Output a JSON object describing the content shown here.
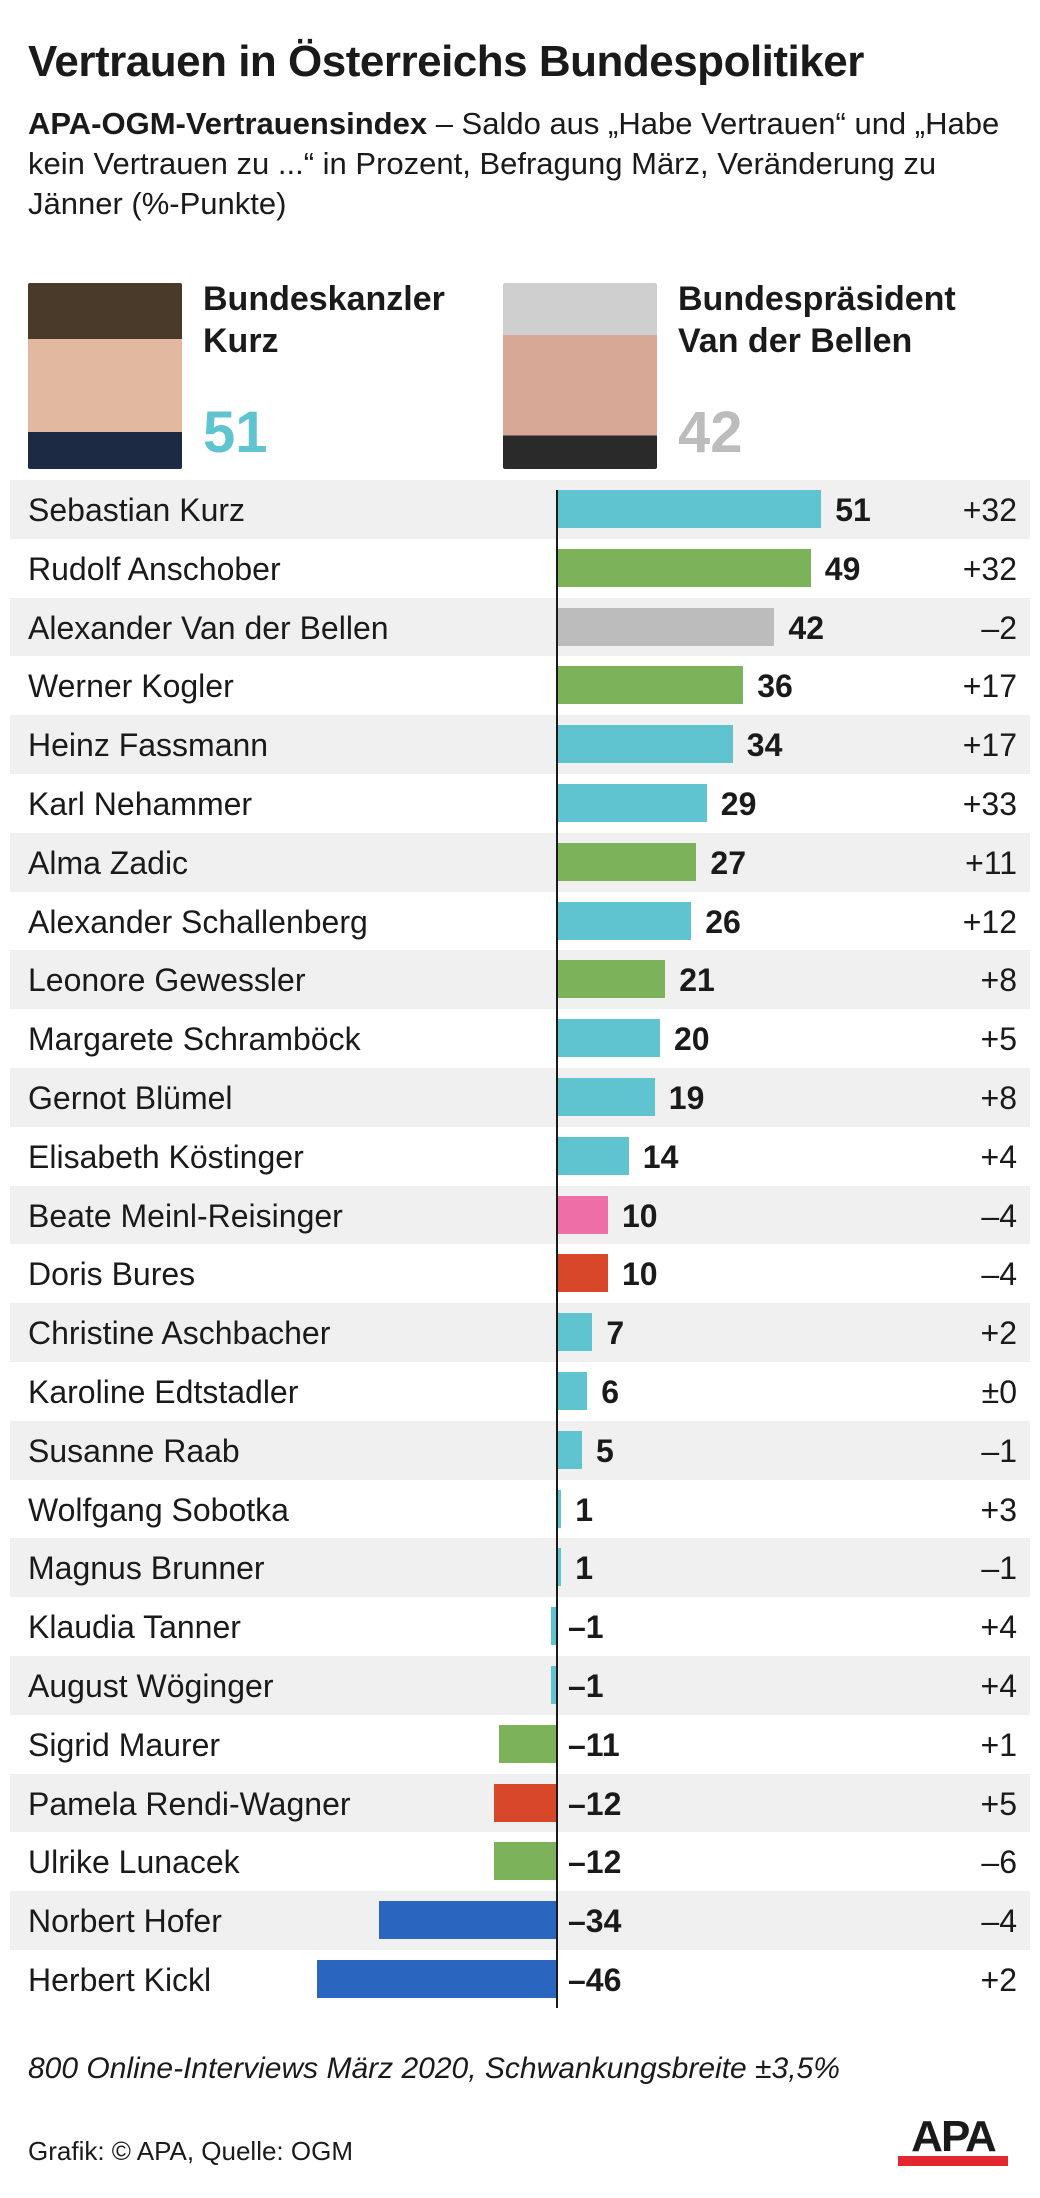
{
  "title": "Vertrauen in Österreichs Bundespolitiker",
  "subtitle_bold": "APA-OGM-Vertrauensindex",
  "subtitle_rest": " – Saldo aus „Habe Vertrauen“ und „Habe kein Vertrauen zu ...“ in Prozent, Befragung März, Veränderung zu Jänner (%-Punkte)",
  "highlights": [
    {
      "line1": "Bundeskanzler",
      "line2": "Kurz",
      "value": "51",
      "color": "#5fc3d0"
    },
    {
      "line1": "Bundespräsident",
      "line2": "Van der Bellen",
      "value": "42",
      "color": "#bcbcbc"
    }
  ],
  "chart_data": {
    "type": "bar",
    "orientation": "horizontal",
    "xlim": [
      -46,
      51
    ],
    "rows": [
      {
        "name": "Sebastian Kurz",
        "value": 51,
        "change": "+32",
        "color": "#5fc3d0"
      },
      {
        "name": "Rudolf Anschober",
        "value": 49,
        "change": "+32",
        "color": "#7cb35a"
      },
      {
        "name": "Alexander Van der Bellen",
        "value": 42,
        "change": "–2",
        "color": "#bcbcbc"
      },
      {
        "name": "Werner Kogler",
        "value": 36,
        "change": "+17",
        "color": "#7cb35a"
      },
      {
        "name": "Heinz Fassmann",
        "value": 34,
        "change": "+17",
        "color": "#5fc3d0"
      },
      {
        "name": "Karl Nehammer",
        "value": 29,
        "change": "+33",
        "color": "#5fc3d0"
      },
      {
        "name": "Alma Zadic",
        "value": 27,
        "change": "+11",
        "color": "#7cb35a"
      },
      {
        "name": "Alexander Schallenberg",
        "value": 26,
        "change": "+12",
        "color": "#5fc3d0"
      },
      {
        "name": "Leonore Gewessler",
        "value": 21,
        "change": "+8",
        "color": "#7cb35a"
      },
      {
        "name": "Margarete Schramböck",
        "value": 20,
        "change": "+5",
        "color": "#5fc3d0"
      },
      {
        "name": "Gernot Blümel",
        "value": 19,
        "change": "+8",
        "color": "#5fc3d0"
      },
      {
        "name": "Elisabeth Köstinger",
        "value": 14,
        "change": "+4",
        "color": "#5fc3d0"
      },
      {
        "name": "Beate Meinl-Reisinger",
        "value": 10,
        "change": "–4",
        "color": "#ee6fa8"
      },
      {
        "name": "Doris Bures",
        "value": 10,
        "change": "–4",
        "color": "#d9472b"
      },
      {
        "name": "Christine Aschbacher",
        "value": 7,
        "change": "+2",
        "color": "#5fc3d0"
      },
      {
        "name": "Karoline Edtstadler",
        "value": 6,
        "change": "±0",
        "color": "#5fc3d0"
      },
      {
        "name": "Susanne Raab",
        "value": 5,
        "change": "–1",
        "color": "#5fc3d0"
      },
      {
        "name": "Wolfgang Sobotka",
        "value": 1,
        "change": "+3",
        "color": "#5fc3d0"
      },
      {
        "name": "Magnus Brunner",
        "value": 1,
        "change": "–1",
        "color": "#5fc3d0"
      },
      {
        "name": "Klaudia Tanner",
        "value": -1,
        "change": "+4",
        "color": "#5fc3d0"
      },
      {
        "name": "August Wöginger",
        "value": -1,
        "change": "+4",
        "color": "#5fc3d0"
      },
      {
        "name": "Sigrid Maurer",
        "value": -11,
        "change": "+1",
        "color": "#7cb35a"
      },
      {
        "name": "Pamela Rendi-Wagner",
        "value": -12,
        "change": "+5",
        "color": "#d9472b"
      },
      {
        "name": "Ulrike Lunacek",
        "value": -12,
        "change": "–6",
        "color": "#7cb35a"
      },
      {
        "name": "Norbert Hofer",
        "value": -34,
        "change": "–4",
        "color": "#2a66bf"
      },
      {
        "name": "Herbert Kickl",
        "value": -46,
        "change": "+2",
        "color": "#2a66bf"
      }
    ]
  },
  "footer": {
    "note": "800 Online-Interviews März 2020, Schwankungsbreite ±3,5%",
    "source": "Grafik: © APA, Quelle: OGM",
    "logo": "APA"
  }
}
